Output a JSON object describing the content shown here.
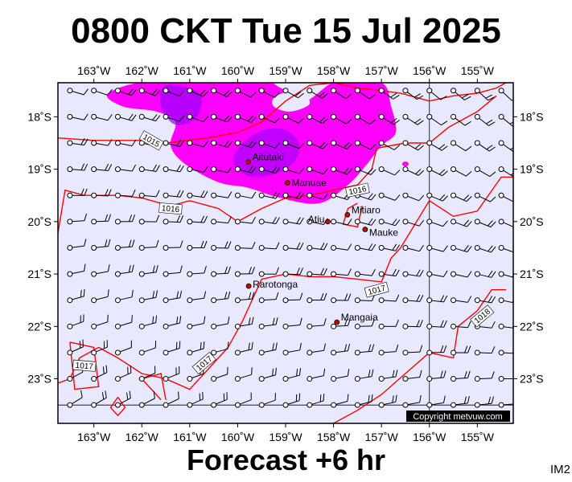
{
  "header": {
    "title": "0800 CKT Tue 15 Jul 2025"
  },
  "footer": {
    "forecast": "Forecast +6 hr",
    "code": "IM2"
  },
  "copyright": "Copyright metvuw.com",
  "map": {
    "lon_range": [
      -163.75,
      -154.25
    ],
    "lat_range": [
      -23.85,
      -17.35
    ],
    "lon_ticks": [
      "163˚W",
      "162˚W",
      "161˚W",
      "160˚W",
      "159˚W",
      "158˚W",
      "157˚W",
      "156˚W",
      "155˚W"
    ],
    "lat_ticks": [
      "18˚S",
      "19˚S",
      "20˚S",
      "21˚S",
      "22˚S",
      "23˚S"
    ],
    "colors": {
      "background": "#e8e8ff",
      "precip_light": "#ff00ff",
      "precip_heavy": "#9900ff",
      "isobar": "#ff0000"
    },
    "places": [
      {
        "name": "Aitutaki",
        "lon": -159.78,
        "lat": -18.86
      },
      {
        "name": "Manuae",
        "lon": -158.96,
        "lat": -19.26
      },
      {
        "name": "Atiu",
        "lon": -158.12,
        "lat": -20.0
      },
      {
        "name": "Mitiaro",
        "lon": -157.71,
        "lat": -19.87
      },
      {
        "name": "Mauke",
        "lon": -157.34,
        "lat": -20.15
      },
      {
        "name": "Rarotonga",
        "lon": -159.77,
        "lat": -21.23
      },
      {
        "name": "Mangaia",
        "lon": -157.93,
        "lat": -21.92
      }
    ],
    "isobar_labels": [
      {
        "text": "1015",
        "lon": -161.8,
        "lat": -18.45,
        "angle": 30
      },
      {
        "text": "1016",
        "lon": -157.5,
        "lat": -19.4,
        "angle": -12
      },
      {
        "text": "1016",
        "lon": -161.4,
        "lat": -19.75,
        "angle": 5
      },
      {
        "text": "1017",
        "lon": -157.1,
        "lat": -21.3,
        "angle": -15
      },
      {
        "text": "1017",
        "lon": -163.2,
        "lat": -22.75,
        "angle": 5
      },
      {
        "text": "1017",
        "lon": -160.7,
        "lat": -22.7,
        "angle": -40
      },
      {
        "text": "1018",
        "lon": -154.9,
        "lat": -21.8,
        "angle": -40
      }
    ]
  }
}
